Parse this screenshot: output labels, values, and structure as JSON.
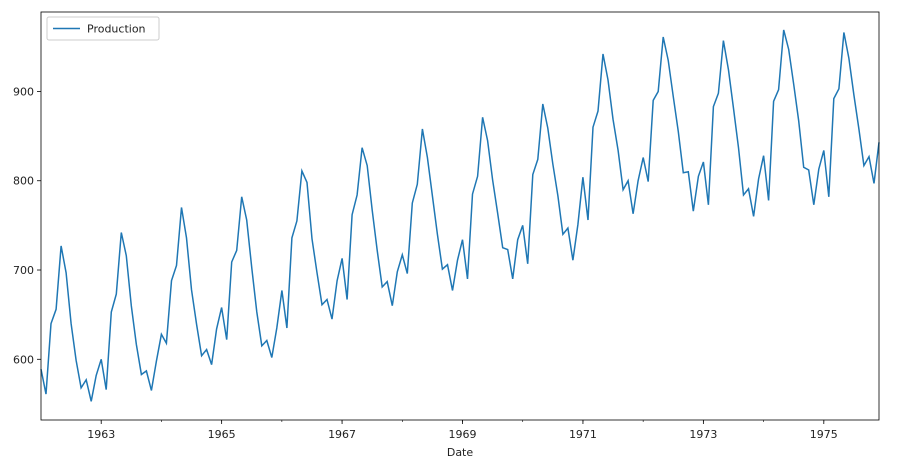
{
  "chart_data": {
    "type": "line",
    "title": "",
    "xlabel": "Date",
    "ylabel": "",
    "x_start": "1962-01",
    "frequency": "monthly",
    "xlim": [
      "1962-01",
      "1975-12"
    ],
    "ylim": [
      532,
      989
    ],
    "x_ticks": [
      "1963",
      "1965",
      "1967",
      "1969",
      "1971",
      "1973",
      "1975"
    ],
    "y_ticks": [
      600,
      700,
      800,
      900
    ],
    "grid": false,
    "legend": {
      "position": "top-left",
      "entries": [
        "Production"
      ]
    },
    "series": [
      {
        "name": "Production",
        "color": "#1f77b4",
        "values": [
          589,
          561,
          640,
          656,
          727,
          697,
          640,
          599,
          568,
          577,
          553,
          582,
          600,
          566,
          653,
          673,
          742,
          716,
          660,
          617,
          583,
          587,
          565,
          598,
          628,
          618,
          688,
          705,
          770,
          736,
          678,
          639,
          604,
          611,
          594,
          634,
          658,
          622,
          709,
          722,
          782,
          756,
          702,
          653,
          615,
          621,
          602,
          635,
          677,
          635,
          736,
          755,
          811,
          798,
          735,
          697,
          661,
          667,
          645,
          688,
          713,
          667,
          762,
          784,
          837,
          817,
          767,
          722,
          681,
          687,
          660,
          698,
          717,
          696,
          775,
          796,
          858,
          826,
          783,
          740,
          701,
          706,
          677,
          711,
          734,
          690,
          785,
          805,
          871,
          845,
          801,
          764,
          725,
          723,
          690,
          734,
          750,
          707,
          807,
          824,
          886,
          859,
          819,
          783,
          740,
          747,
          711,
          751,
          804,
          756,
          860,
          878,
          942,
          913,
          869,
          834,
          790,
          800,
          763,
          800,
          826,
          799,
          890,
          900,
          961,
          935,
          894,
          855,
          809,
          810,
          766,
          805,
          821,
          773,
          883,
          898,
          957,
          924,
          881,
          837,
          784,
          791,
          760,
          802,
          828,
          778,
          889,
          902,
          969,
          947,
          908,
          867,
          815,
          812,
          773,
          813,
          834,
          782,
          892,
          903,
          966,
          937,
          896,
          858,
          817,
          827,
          797,
          843
        ]
      }
    ]
  }
}
